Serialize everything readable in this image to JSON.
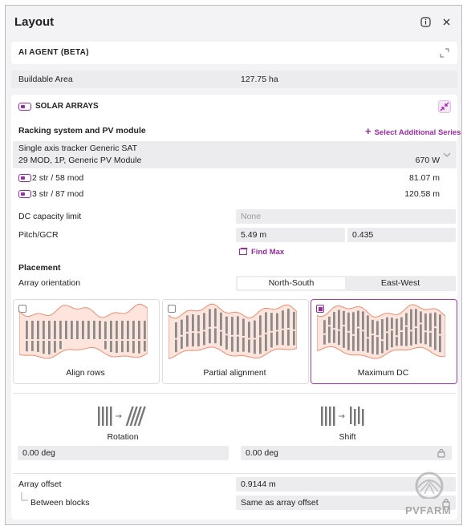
{
  "header": {
    "title": "Layout"
  },
  "ai_agent": {
    "title": "AI AGENT (BETA)"
  },
  "buildable_area": {
    "label": "Buildable Area",
    "value": "127.75 ha"
  },
  "solar_arrays": {
    "title": "SOLAR ARRAYS"
  },
  "racking": {
    "heading": "Racking system and PV module",
    "action": "Select Additional Series",
    "module": {
      "line1": "Single axis tracker Generic SAT",
      "line2": "29 MOD, 1P, Generic PV Module",
      "power": "670 W"
    },
    "strings": [
      {
        "label": "2 str / 58 mod",
        "value": "81.07 m"
      },
      {
        "label": "3 str / 87 mod",
        "value": "120.58 m"
      }
    ]
  },
  "dc_capacity": {
    "label": "DC capacity limit",
    "placeholder": "None"
  },
  "pitch": {
    "label": "Pitch/GCR",
    "pitch": "5.49 m",
    "gcr": "0.435",
    "find_max": "Find Max"
  },
  "placement": {
    "heading": "Placement",
    "orientation_label": "Array orientation",
    "orientations": [
      "North-South",
      "East-West"
    ],
    "alignments": [
      "Align rows",
      "Partial alignment",
      "Maximum DC"
    ]
  },
  "rotation": {
    "label": "Rotation",
    "value": "0.00 deg"
  },
  "shift": {
    "label": "Shift",
    "value": "0.00 deg"
  },
  "array_offset": {
    "label": "Array offset",
    "value": "0.9144 m"
  },
  "between_blocks": {
    "label": "Between blocks",
    "value": "Same as array offset"
  },
  "watermark": "PVFARM"
}
